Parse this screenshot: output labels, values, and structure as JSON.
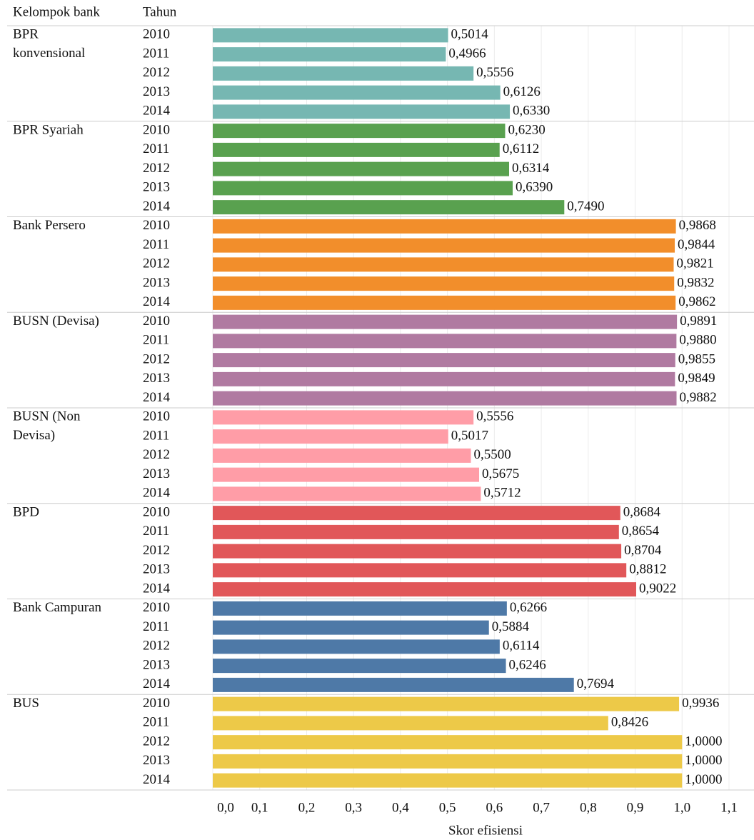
{
  "chart_data": {
    "type": "bar",
    "header_labels": [
      "Kelompok bank",
      "Tahun"
    ],
    "x_label": "Skor efisiensi",
    "categories": [
      "2010",
      "2011",
      "2012",
      "2013",
      "2014"
    ],
    "series": [
      {
        "name": "BPR konvensional",
        "color": "#76b7b2",
        "values": [
          0.5014,
          0.4966,
          0.5556,
          0.6126,
          0.633
        ],
        "value_labels": [
          "0,5014",
          "0,4966",
          "0,5556",
          "0,6126",
          "0,6330"
        ]
      },
      {
        "name": "BPR Syariah",
        "color": "#59a14f",
        "values": [
          0.623,
          0.6112,
          0.6314,
          0.639,
          0.749
        ],
        "value_labels": [
          "0,6230",
          "0,6112",
          "0,6314",
          "0,6390",
          "0,7490"
        ]
      },
      {
        "name": "Bank Persero",
        "color": "#f28e2b",
        "values": [
          0.9868,
          0.9844,
          0.9821,
          0.9832,
          0.9862
        ],
        "value_labels": [
          "0,9868",
          "0,9844",
          "0,9821",
          "0,9832",
          "0,9862"
        ]
      },
      {
        "name": "BUSN (Devisa)",
        "color": "#b07aa1",
        "values": [
          0.9891,
          0.988,
          0.9855,
          0.9849,
          0.9882
        ],
        "value_labels": [
          "0,9891",
          "0,9880",
          "0,9855",
          "0,9849",
          "0,9882"
        ]
      },
      {
        "name": "BUSN (Non Devisa)",
        "color": "#ff9da7",
        "values": [
          0.5556,
          0.5017,
          0.55,
          0.5675,
          0.5712
        ],
        "value_labels": [
          "0,5556",
          "0,5017",
          "0,5500",
          "0,5675",
          "0,5712"
        ]
      },
      {
        "name": "BPD",
        "color": "#e15759",
        "values": [
          0.8684,
          0.8654,
          0.8704,
          0.8812,
          0.9022
        ],
        "value_labels": [
          "0,8684",
          "0,8654",
          "0,8704",
          "0,8812",
          "0,9022"
        ]
      },
      {
        "name": "Bank Campuran",
        "color": "#4e79a7",
        "values": [
          0.6266,
          0.5884,
          0.6114,
          0.6246,
          0.7694
        ],
        "value_labels": [
          "0,6266",
          "0,5884",
          "0,6114",
          "0,6246",
          "0,7694"
        ]
      },
      {
        "name": "BUS",
        "color": "#edc948",
        "values": [
          0.9936,
          0.8426,
          1.0,
          1.0,
          1.0
        ],
        "value_labels": [
          "0,9936",
          "0,8426",
          "1,0000",
          "1,0000",
          "1,0000"
        ]
      }
    ],
    "xlim": [
      0,
      1.1
    ],
    "xticks": [
      {
        "value": 0,
        "label": "0,0"
      },
      {
        "value": 0.1,
        "label": "0,1"
      },
      {
        "value": 0.2,
        "label": "0,2"
      },
      {
        "value": 0.3,
        "label": "0,3"
      },
      {
        "value": 0.4,
        "label": "0,4"
      },
      {
        "value": 0.5,
        "label": "0,5"
      },
      {
        "value": 0.6,
        "label": "0,6"
      },
      {
        "value": 0.7,
        "label": "0,7"
      },
      {
        "value": 0.8,
        "label": "0,8"
      },
      {
        "value": 0.9,
        "label": "0,9"
      },
      {
        "value": 1.0,
        "label": "1,0"
      },
      {
        "value": 1.1,
        "label": "1,1"
      }
    ],
    "grid": true
  }
}
